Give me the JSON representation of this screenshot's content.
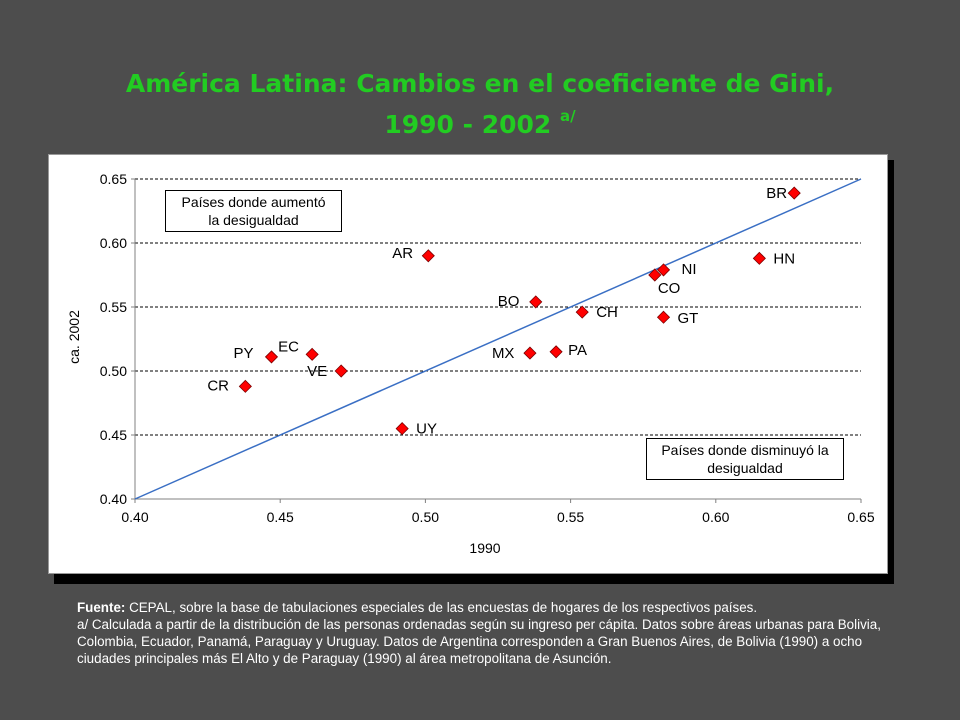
{
  "title": {
    "line1": "América Latina: Cambios en el coeficiente de Gini,",
    "line2": "1990 - 2002",
    "sup": "a/"
  },
  "chart_data": {
    "type": "scatter",
    "xlabel": "1990",
    "ylabel": "ca. 2002",
    "xlim": [
      0.4,
      0.65
    ],
    "ylim": [
      0.4,
      0.65
    ],
    "x_ticks": [
      "0.40",
      "0.45",
      "0.50",
      "0.55",
      "0.60",
      "0.65"
    ],
    "y_ticks": [
      "0.40",
      "0.45",
      "0.50",
      "0.55",
      "0.60",
      "0.65"
    ],
    "grid": "horizontal dashed",
    "marker_color": "#ff0000",
    "line_color": "#3a6fc4",
    "reference_line": [
      [
        0.4,
        0.4
      ],
      [
        0.65,
        0.65
      ]
    ],
    "points": [
      {
        "label": "BR",
        "x": 0.627,
        "y": 0.639
      },
      {
        "label": "AR",
        "x": 0.501,
        "y": 0.59
      },
      {
        "label": "NI",
        "x": 0.582,
        "y": 0.579
      },
      {
        "label": "CO",
        "x": 0.579,
        "y": 0.575
      },
      {
        "label": "HN",
        "x": 0.615,
        "y": 0.588
      },
      {
        "label": "BO",
        "x": 0.538,
        "y": 0.554
      },
      {
        "label": "CH",
        "x": 0.554,
        "y": 0.546
      },
      {
        "label": "GT",
        "x": 0.582,
        "y": 0.542
      },
      {
        "label": "MX",
        "x": 0.536,
        "y": 0.514
      },
      {
        "label": "PA",
        "x": 0.545,
        "y": 0.515
      },
      {
        "label": "PY",
        "x": 0.447,
        "y": 0.511
      },
      {
        "label": "EC",
        "x": 0.461,
        "y": 0.513
      },
      {
        "label": "VE",
        "x": 0.471,
        "y": 0.5
      },
      {
        "label": "CR",
        "x": 0.438,
        "y": 0.488
      },
      {
        "label": "UY",
        "x": 0.492,
        "y": 0.455
      }
    ],
    "annotations": {
      "upper": {
        "line1": "Países donde aumentó",
        "line2": "la desigualdad"
      },
      "lower": {
        "line1": "Países donde disminuyó la",
        "line2": "desigualdad"
      }
    }
  },
  "footnote": {
    "source_label": "Fuente:",
    "source_text": " CEPAL, sobre la base de tabulaciones especiales de las encuestas de hogares de los respectivos países.",
    "note": "a/ Calculada a partir de la distribución de las personas ordenadas según su ingreso per cápita. Datos sobre áreas urbanas para Bolivia, Colombia, Ecuador, Panamá, Paraguay y Uruguay. Datos de Argentina corresponden a Gran Buenos Aires, de Bolivia (1990) a ocho ciudades principales más El Alto y de Paraguay (1990) al área metropolitana de Asunción."
  }
}
